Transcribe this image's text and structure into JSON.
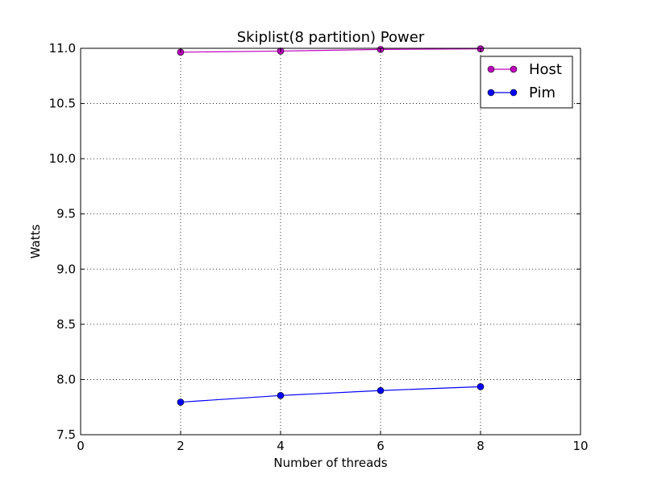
{
  "chart_data": {
    "type": "line",
    "title": "Skiplist(8 partition) Power",
    "xlabel": "Number of threads",
    "ylabel": "Watts",
    "xlim": [
      0,
      10
    ],
    "ylim": [
      7.5,
      11.0
    ],
    "xticks": [
      0,
      2,
      4,
      6,
      8,
      10
    ],
    "xtick_labels": [
      "0",
      "2",
      "4",
      "6",
      "8",
      "10"
    ],
    "yticks": [
      7.5,
      8.0,
      8.5,
      9.0,
      9.5,
      10.0,
      10.5,
      11.0
    ],
    "ytick_labels": [
      "7.5",
      "8.0",
      "8.5",
      "9.0",
      "9.5",
      "10.0",
      "10.5",
      "11.0"
    ],
    "grid": true,
    "legend_position": "top-right",
    "series": [
      {
        "name": "Host",
        "color": "#bf00bf",
        "x": [
          2,
          4,
          6,
          8
        ],
        "values": [
          10.965,
          10.975,
          10.99,
          10.995
        ]
      },
      {
        "name": "Pim",
        "color": "#0000ff",
        "x": [
          2,
          4,
          6,
          8
        ],
        "values": [
          7.795,
          7.855,
          7.9,
          7.935
        ]
      }
    ]
  }
}
